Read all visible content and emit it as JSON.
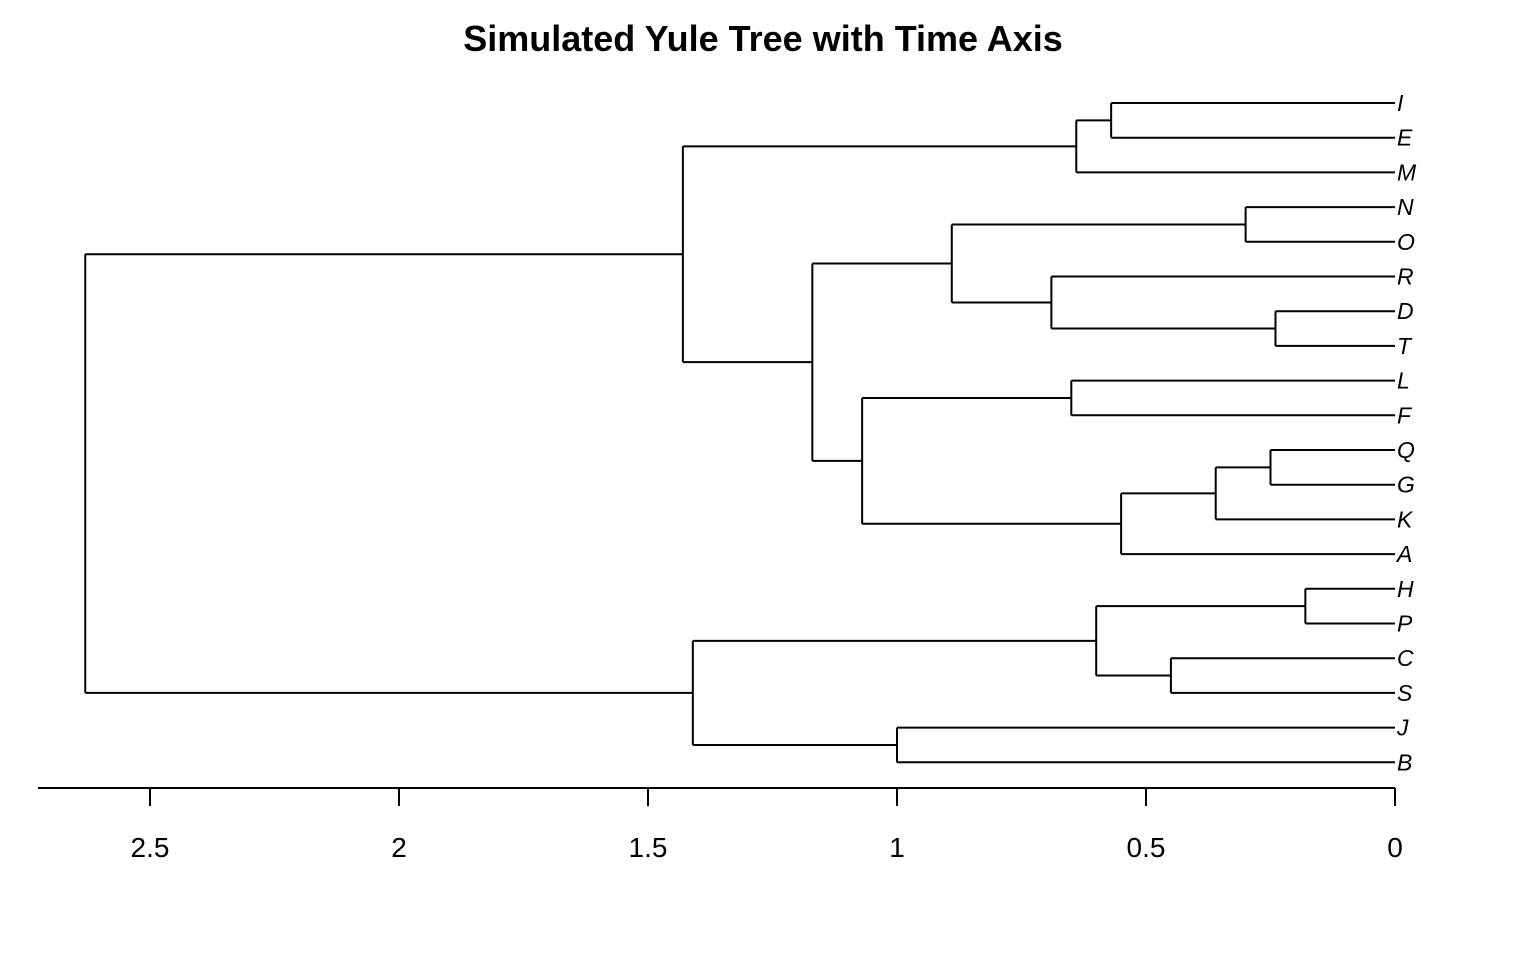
{
  "chart_data": {
    "type": "dendrogram",
    "title": "Simulated Yule Tree with Time Axis",
    "xlabel": "",
    "ylabel": "",
    "x_axis": {
      "ticks": [
        2.5,
        2,
        1.5,
        1,
        0.5,
        0
      ],
      "tick_labels": [
        "2.5",
        "2",
        "1.5",
        "1",
        "0.5",
        "0"
      ],
      "reversed": true,
      "range": [
        2.72,
        0
      ]
    },
    "tips": [
      "I",
      "E",
      "M",
      "N",
      "O",
      "R",
      "D",
      "T",
      "L",
      "F",
      "Q",
      "G",
      "K",
      "A",
      "H",
      "P",
      "C",
      "S",
      "J",
      "B"
    ],
    "tree": {
      "age": 2.63,
      "children": [
        {
          "age": 1.43,
          "children": [
            {
              "age": 0.64,
              "children": [
                {
                  "age": 0.57,
                  "children": [
                    {
                      "tip": "I"
                    },
                    {
                      "tip": "E"
                    }
                  ]
                },
                {
                  "tip": "M"
                }
              ]
            },
            {
              "age": 1.17,
              "children": [
                {
                  "age": 0.89,
                  "children": [
                    {
                      "age": 0.3,
                      "children": [
                        {
                          "tip": "N"
                        },
                        {
                          "tip": "O"
                        }
                      ]
                    },
                    {
                      "age": 0.69,
                      "children": [
                        {
                          "tip": "R"
                        },
                        {
                          "age": 0.24,
                          "children": [
                            {
                              "tip": "D"
                            },
                            {
                              "tip": "T"
                            }
                          ]
                        }
                      ]
                    }
                  ]
                },
                {
                  "age": 1.07,
                  "children": [
                    {
                      "age": 0.65,
                      "children": [
                        {
                          "tip": "L"
                        },
                        {
                          "tip": "F"
                        }
                      ]
                    },
                    {
                      "age": 0.55,
                      "children": [
                        {
                          "age": 0.36,
                          "children": [
                            {
                              "age": 0.25,
                              "children": [
                                {
                                  "tip": "Q"
                                },
                                {
                                  "tip": "G"
                                }
                              ]
                            },
                            {
                              "tip": "K"
                            }
                          ]
                        },
                        {
                          "tip": "A"
                        }
                      ]
                    }
                  ]
                }
              ]
            }
          ]
        },
        {
          "age": 1.41,
          "children": [
            {
              "age": 0.6,
              "children": [
                {
                  "age": 0.18,
                  "children": [
                    {
                      "tip": "H"
                    },
                    {
                      "tip": "P"
                    }
                  ]
                },
                {
                  "age": 0.45,
                  "children": [
                    {
                      "tip": "C"
                    },
                    {
                      "tip": "S"
                    }
                  ]
                }
              ]
            },
            {
              "age": 1.0,
              "children": [
                {
                  "tip": "J"
                },
                {
                  "tip": "B"
                }
              ]
            }
          ]
        }
      ]
    }
  }
}
